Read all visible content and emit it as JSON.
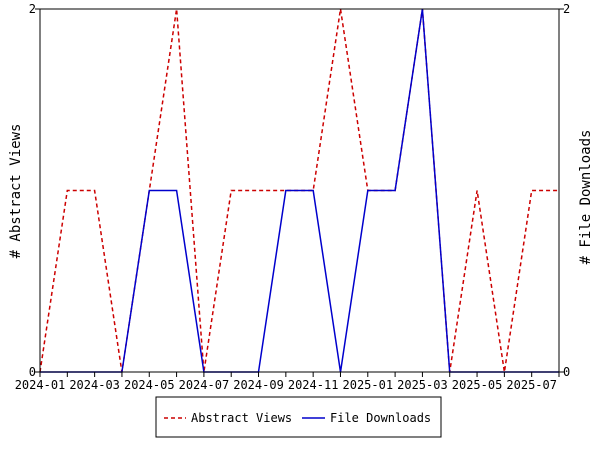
{
  "chart_data": {
    "type": "line",
    "title": "",
    "x": [
      "2024-01",
      "2024-02",
      "2024-03",
      "2024-04",
      "2024-05",
      "2024-06",
      "2024-07",
      "2024-08",
      "2024-09",
      "2024-10",
      "2024-11",
      "2024-12",
      "2025-01",
      "2025-02",
      "2025-03",
      "2025-04",
      "2025-05",
      "2025-06",
      "2025-07",
      "2025-08"
    ],
    "x_tick_labels": [
      "2024-01",
      "2024-03",
      "2024-05",
      "2024-07",
      "2024-09",
      "2024-11",
      "2025-01",
      "2025-03",
      "2025-05",
      "2025-07"
    ],
    "ylabel_left": "# Abstract Views",
    "ylabel_right": "# File Downloads",
    "ylim_left": [
      0,
      2
    ],
    "ylim_right": [
      0,
      2
    ],
    "y_ticks_left": [
      "0",
      "2"
    ],
    "y_ticks_right": [
      "0",
      "2"
    ],
    "grid": false,
    "legend_position": "bottom-center",
    "series": [
      {
        "name": "Abstract Views",
        "axis": "left",
        "color": "#cc0000",
        "style": "dashed",
        "values": [
          0,
          1,
          1,
          0,
          1,
          2,
          0,
          1,
          1,
          1,
          1,
          2,
          1,
          1,
          2,
          0,
          1,
          0,
          1,
          1
        ]
      },
      {
        "name": "File Downloads",
        "axis": "right",
        "color": "#0000cc",
        "style": "solid",
        "values": [
          0,
          0,
          0,
          0,
          1,
          1,
          0,
          0,
          0,
          1,
          1,
          0,
          1,
          1,
          2,
          0,
          0,
          0,
          0,
          0
        ]
      }
    ]
  }
}
